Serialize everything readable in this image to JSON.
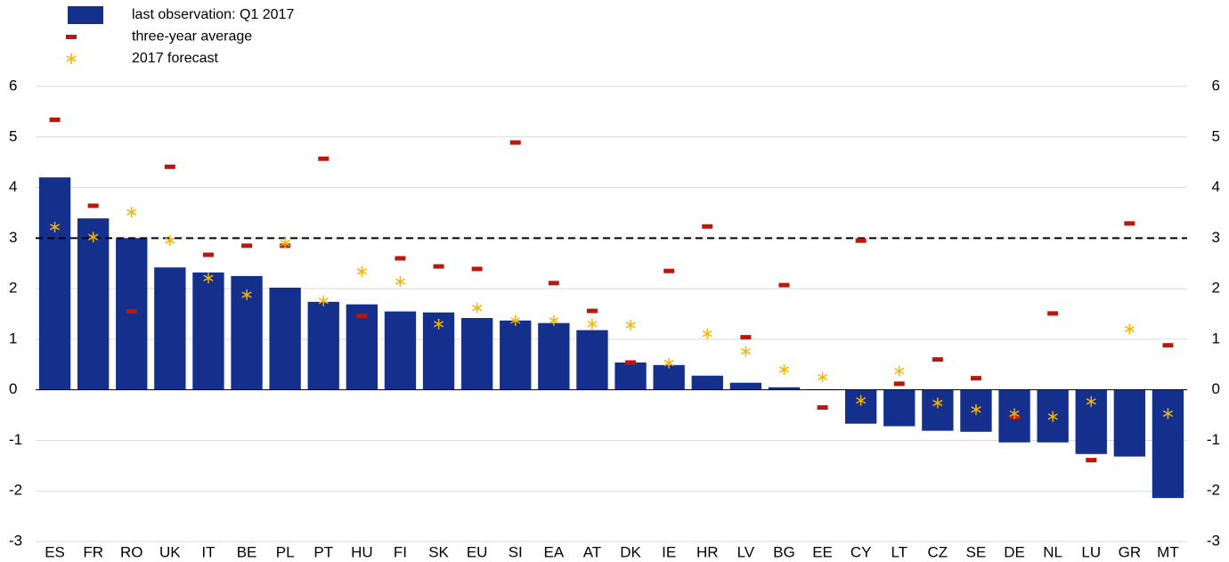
{
  "chart_data": {
    "type": "bar",
    "categories": [
      "ES",
      "FR",
      "RO",
      "UK",
      "IT",
      "BE",
      "PL",
      "PT",
      "HU",
      "FI",
      "SK",
      "EU",
      "SI",
      "EA",
      "AT",
      "DK",
      "IE",
      "HR",
      "LV",
      "BG",
      "EE",
      "CY",
      "LT",
      "CZ",
      "SE",
      "DE",
      "NL",
      "LU",
      "GR",
      "MT"
    ],
    "series": [
      {
        "name": "last observation: Q1 2017",
        "type": "bar",
        "color": "#14308c",
        "values": [
          4.2,
          3.39,
          3.0,
          2.42,
          2.32,
          2.25,
          2.02,
          1.74,
          1.69,
          1.55,
          1.53,
          1.42,
          1.37,
          1.32,
          1.18,
          0.54,
          0.49,
          0.28,
          0.14,
          0.05,
          0.01,
          -0.67,
          -0.72,
          -0.81,
          -0.83,
          -1.04,
          -1.04,
          -1.27,
          -1.32,
          -2.14
        ]
      },
      {
        "name": "three-year average",
        "type": "dash",
        "color": "#b8190e",
        "values": [
          5.34,
          3.64,
          1.55,
          4.41,
          2.67,
          2.85,
          2.85,
          4.57,
          1.46,
          2.6,
          2.44,
          2.39,
          4.89,
          2.11,
          1.56,
          0.54,
          2.35,
          3.23,
          1.04,
          2.07,
          -0.35,
          2.95,
          0.12,
          0.6,
          0.23,
          -0.54,
          1.51,
          -1.39,
          3.29,
          0.88
        ]
      },
      {
        "name": "2017 forecast",
        "type": "star",
        "color": "#f4b400",
        "values": [
          3.22,
          3.02,
          3.51,
          2.95,
          2.21,
          1.88,
          2.9,
          1.76,
          2.34,
          2.14,
          1.3,
          1.62,
          1.37,
          1.37,
          1.3,
          1.28,
          0.53,
          1.11,
          0.76,
          0.4,
          0.25,
          -0.21,
          0.37,
          -0.26,
          -0.39,
          -0.47,
          -0.53,
          -0.23,
          1.2,
          -0.47
        ]
      }
    ],
    "reference_line": 3,
    "ylim": [
      -3,
      6
    ],
    "yticks": [
      -3,
      -2,
      -1,
      0,
      1,
      2,
      3,
      4,
      5,
      6
    ],
    "y2lim": [
      -3,
      6
    ],
    "y2ticks": [
      -3,
      -2,
      -1,
      0,
      1,
      2,
      3,
      4,
      5,
      6
    ],
    "grid": true
  }
}
